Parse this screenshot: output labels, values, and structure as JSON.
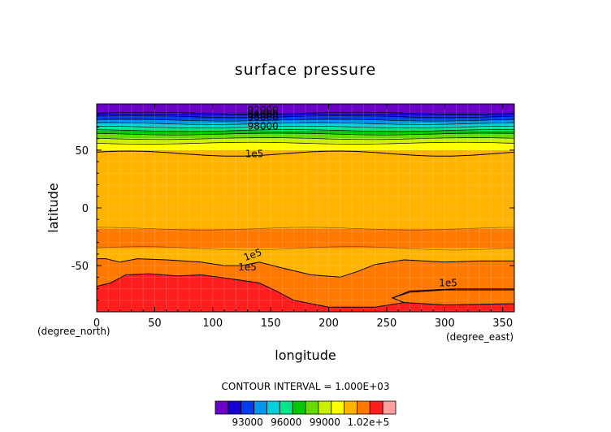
{
  "chart_data": {
    "type": "heatmap",
    "title": "surface pressure",
    "xlabel": "longitude",
    "ylabel": "latitude",
    "x_unit": "(degree_east)",
    "y_unit": "(degree_north)",
    "xlim": [
      0,
      360
    ],
    "ylim": [
      -90,
      90
    ],
    "x_ticks": [
      0,
      50,
      100,
      150,
      200,
      250,
      300,
      350
    ],
    "y_ticks": [
      50,
      0,
      -50
    ],
    "contour_interval_text": "CONTOUR INTERVAL = 1.000E+03",
    "contour_labels": [
      "92000",
      "94000",
      "96000",
      "98000",
      "1e5",
      "1e5",
      "1e5",
      "1e5"
    ],
    "colorbar": {
      "tick_labels": [
        "93000",
        "96000",
        "99000",
        "1.02e+5"
      ],
      "colors": [
        "#6a00c8",
        "#1400d2",
        "#003cf0",
        "#0096f0",
        "#00d2dc",
        "#00e68c",
        "#00c800",
        "#64dc00",
        "#c8f000",
        "#ffff00",
        "#ffb400",
        "#ff7800",
        "#ff1e1e",
        "#ffa0a0"
      ]
    },
    "lat_bands": [
      {
        "lat": [
          82,
          90
        ],
        "value": 91500
      },
      {
        "lat": [
          79,
          82
        ],
        "value": 92500
      },
      {
        "lat": [
          76,
          79
        ],
        "value": 93500
      },
      {
        "lat": [
          73,
          76
        ],
        "value": 94500
      },
      {
        "lat": [
          70,
          73
        ],
        "value": 95500
      },
      {
        "lat": [
          67,
          70
        ],
        "value": 96500
      },
      {
        "lat": [
          64,
          67
        ],
        "value": 97500
      },
      {
        "lat": [
          60,
          64
        ],
        "value": 98500
      },
      {
        "lat": [
          56,
          60
        ],
        "value": 99500
      },
      {
        "lat": [
          50,
          56
        ],
        "value": 100500
      },
      {
        "lat": [
          -18,
          50
        ],
        "value": 101500
      },
      {
        "lat": [
          -35,
          -18
        ],
        "value": 102500
      },
      {
        "lat": [
          -90,
          -35
        ],
        "value": 101500
      }
    ],
    "regions_lowered": [
      {
        "value": 100500,
        "note": "orange lobes below 1e5 contour near 45N and over southern high latitudes"
      }
    ]
  }
}
